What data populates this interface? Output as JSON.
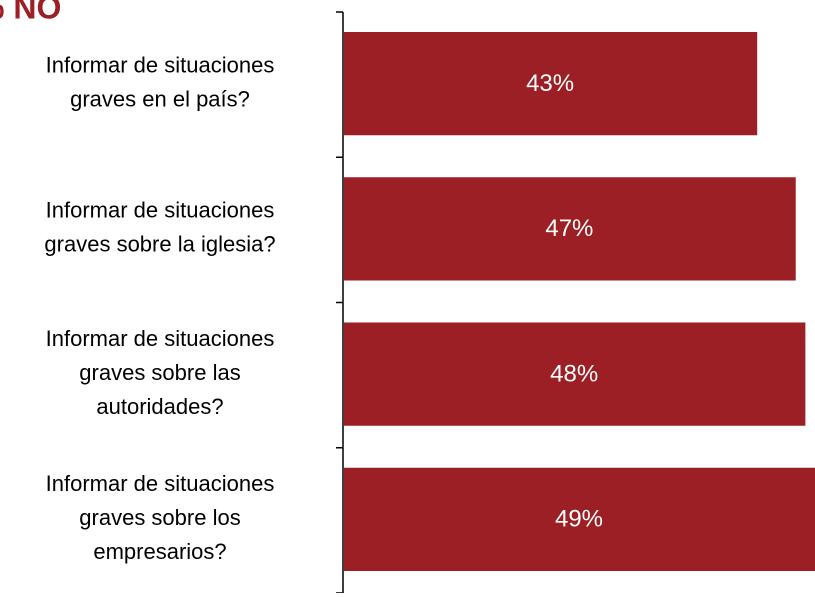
{
  "chart_data": {
    "type": "bar",
    "orientation": "horizontal",
    "title": "% NO",
    "categories": [
      [
        "Informar de situaciones",
        "graves en el país?"
      ],
      [
        "Informar de situaciones",
        "graves sobre la iglesia?"
      ],
      [
        "Informar de situaciones",
        "graves sobre las",
        "autoridades?"
      ],
      [
        "Informar de situaciones",
        "graves sobre los",
        "empresarios?"
      ]
    ],
    "values": [
      43,
      47,
      48,
      49
    ],
    "value_labels": [
      "43%",
      "47%",
      "48%",
      "49%"
    ],
    "color": "#9b1f25"
  }
}
